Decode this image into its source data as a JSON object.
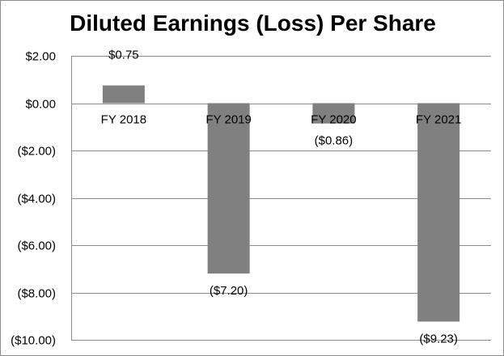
{
  "chart_data": {
    "type": "bar",
    "title": "Diluted Earnings (Loss) Per Share",
    "categories": [
      "FY 2018",
      "FY 2019",
      "FY 2020",
      "FY 2021"
    ],
    "values": [
      0.75,
      -7.2,
      -0.86,
      -9.23
    ],
    "data_labels": [
      "$0.75",
      "($7.20)",
      "($0.86)",
      "($9.23)"
    ],
    "ylim": [
      -10,
      2
    ],
    "y_ticks": [
      2,
      0,
      -2,
      -4,
      -6,
      -8,
      -10
    ],
    "y_tick_labels": [
      "$2.00",
      "$0.00",
      "($2.00)",
      "($4.00)",
      "($6.00)",
      "($8.00)",
      "($10.00)"
    ],
    "xlabel": "",
    "ylabel": "",
    "grid": true,
    "legend": "none"
  },
  "colors": {
    "bar": "#808080",
    "grid": "#8c8c8c",
    "frame": "#8c8c8c"
  }
}
